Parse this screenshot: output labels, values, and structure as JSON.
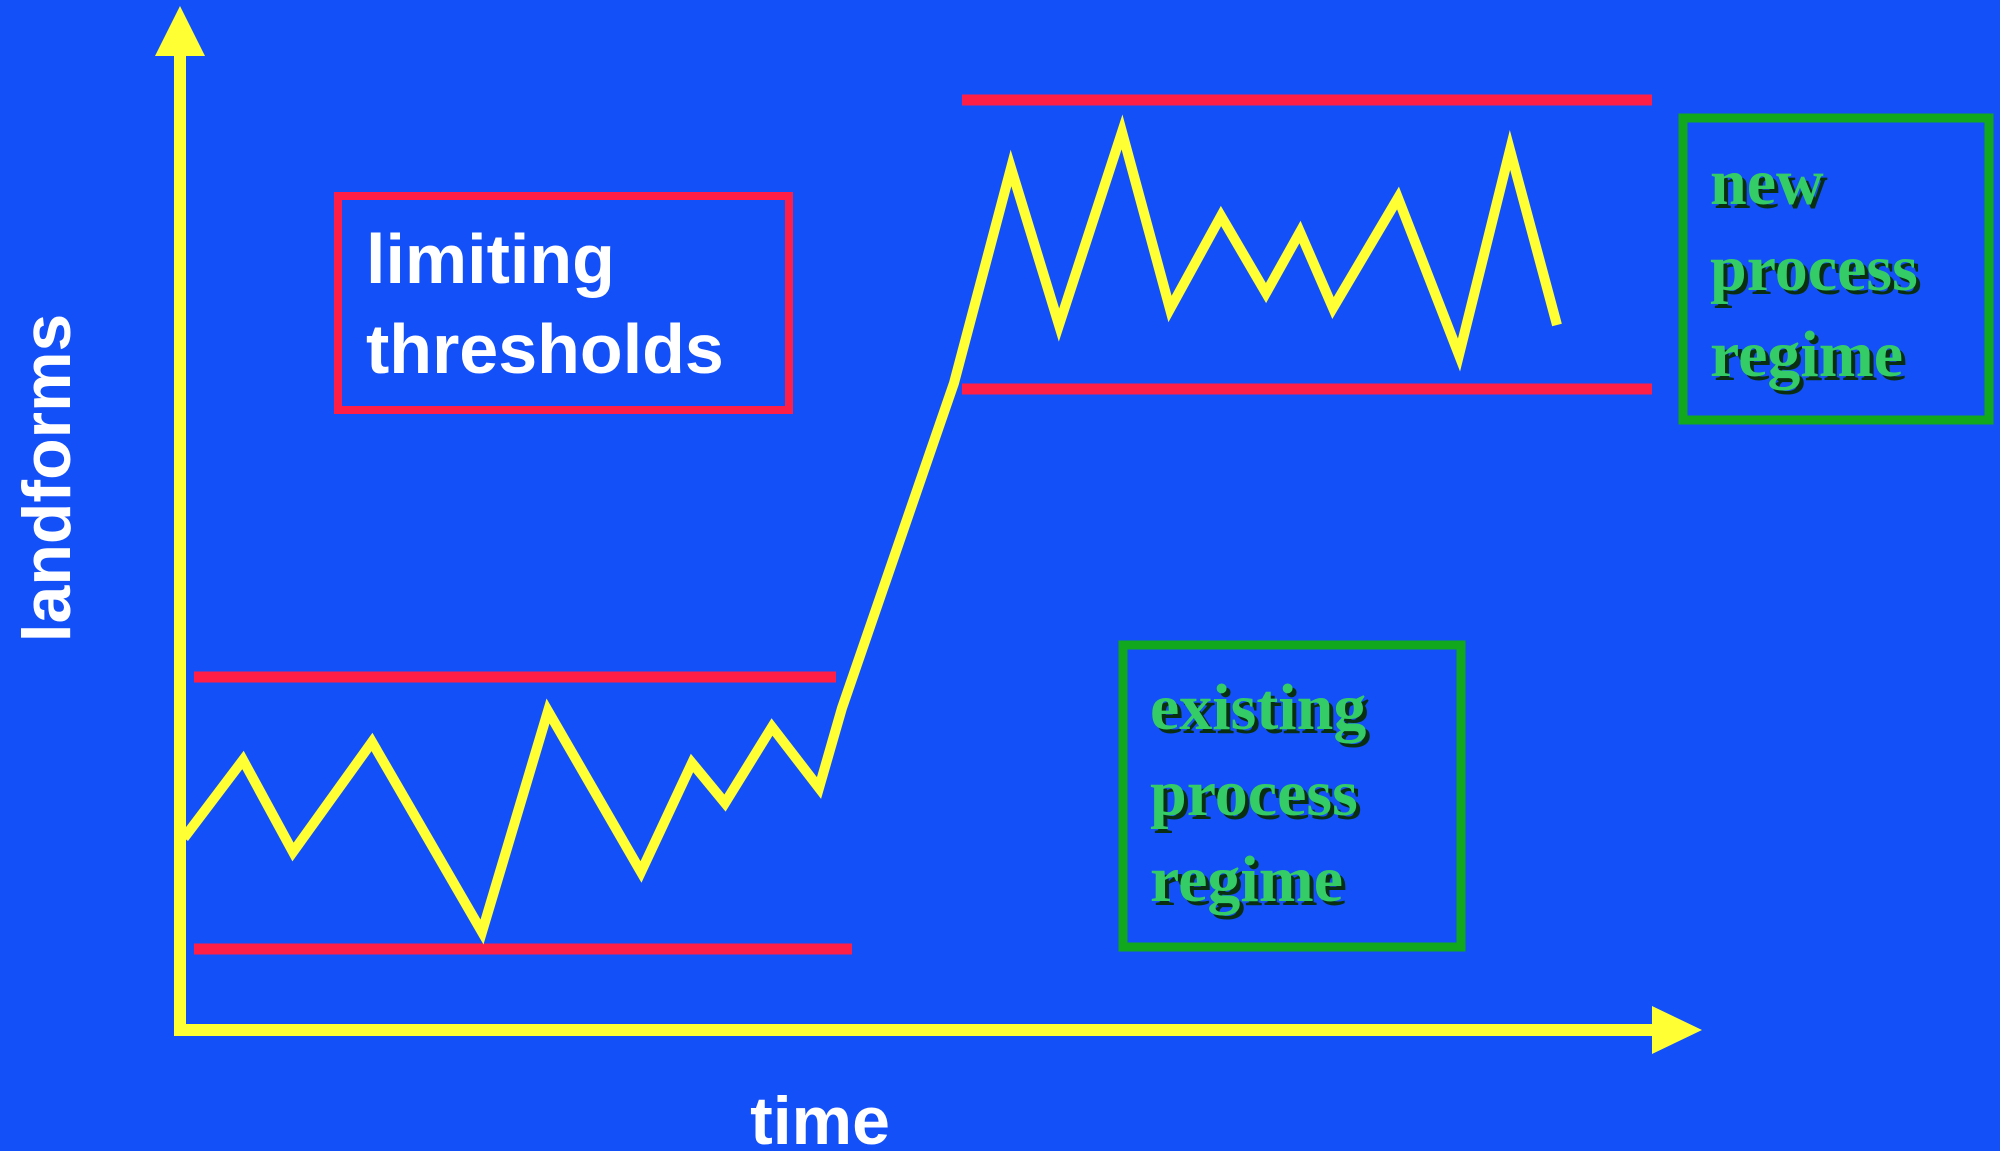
{
  "colors": {
    "background": "#1450F8",
    "axis": "#FFFF33",
    "signal": "#FFFF33",
    "threshold": "#FF1E46",
    "threshold_box": "#FF1E46",
    "regime_box": "#11A81E",
    "regime_text": "#33CC66",
    "label_text": "#FFFFFF"
  },
  "axes": {
    "y_label": "landforms",
    "x_label": "time"
  },
  "thresholds_box": {
    "line1": "limiting",
    "line2": "thresholds"
  },
  "existing_regime": {
    "line1": "existing",
    "line2": "process",
    "line3": "regime"
  },
  "new_regime": {
    "line1": "new",
    "line2": "process",
    "line3": "regime"
  }
}
